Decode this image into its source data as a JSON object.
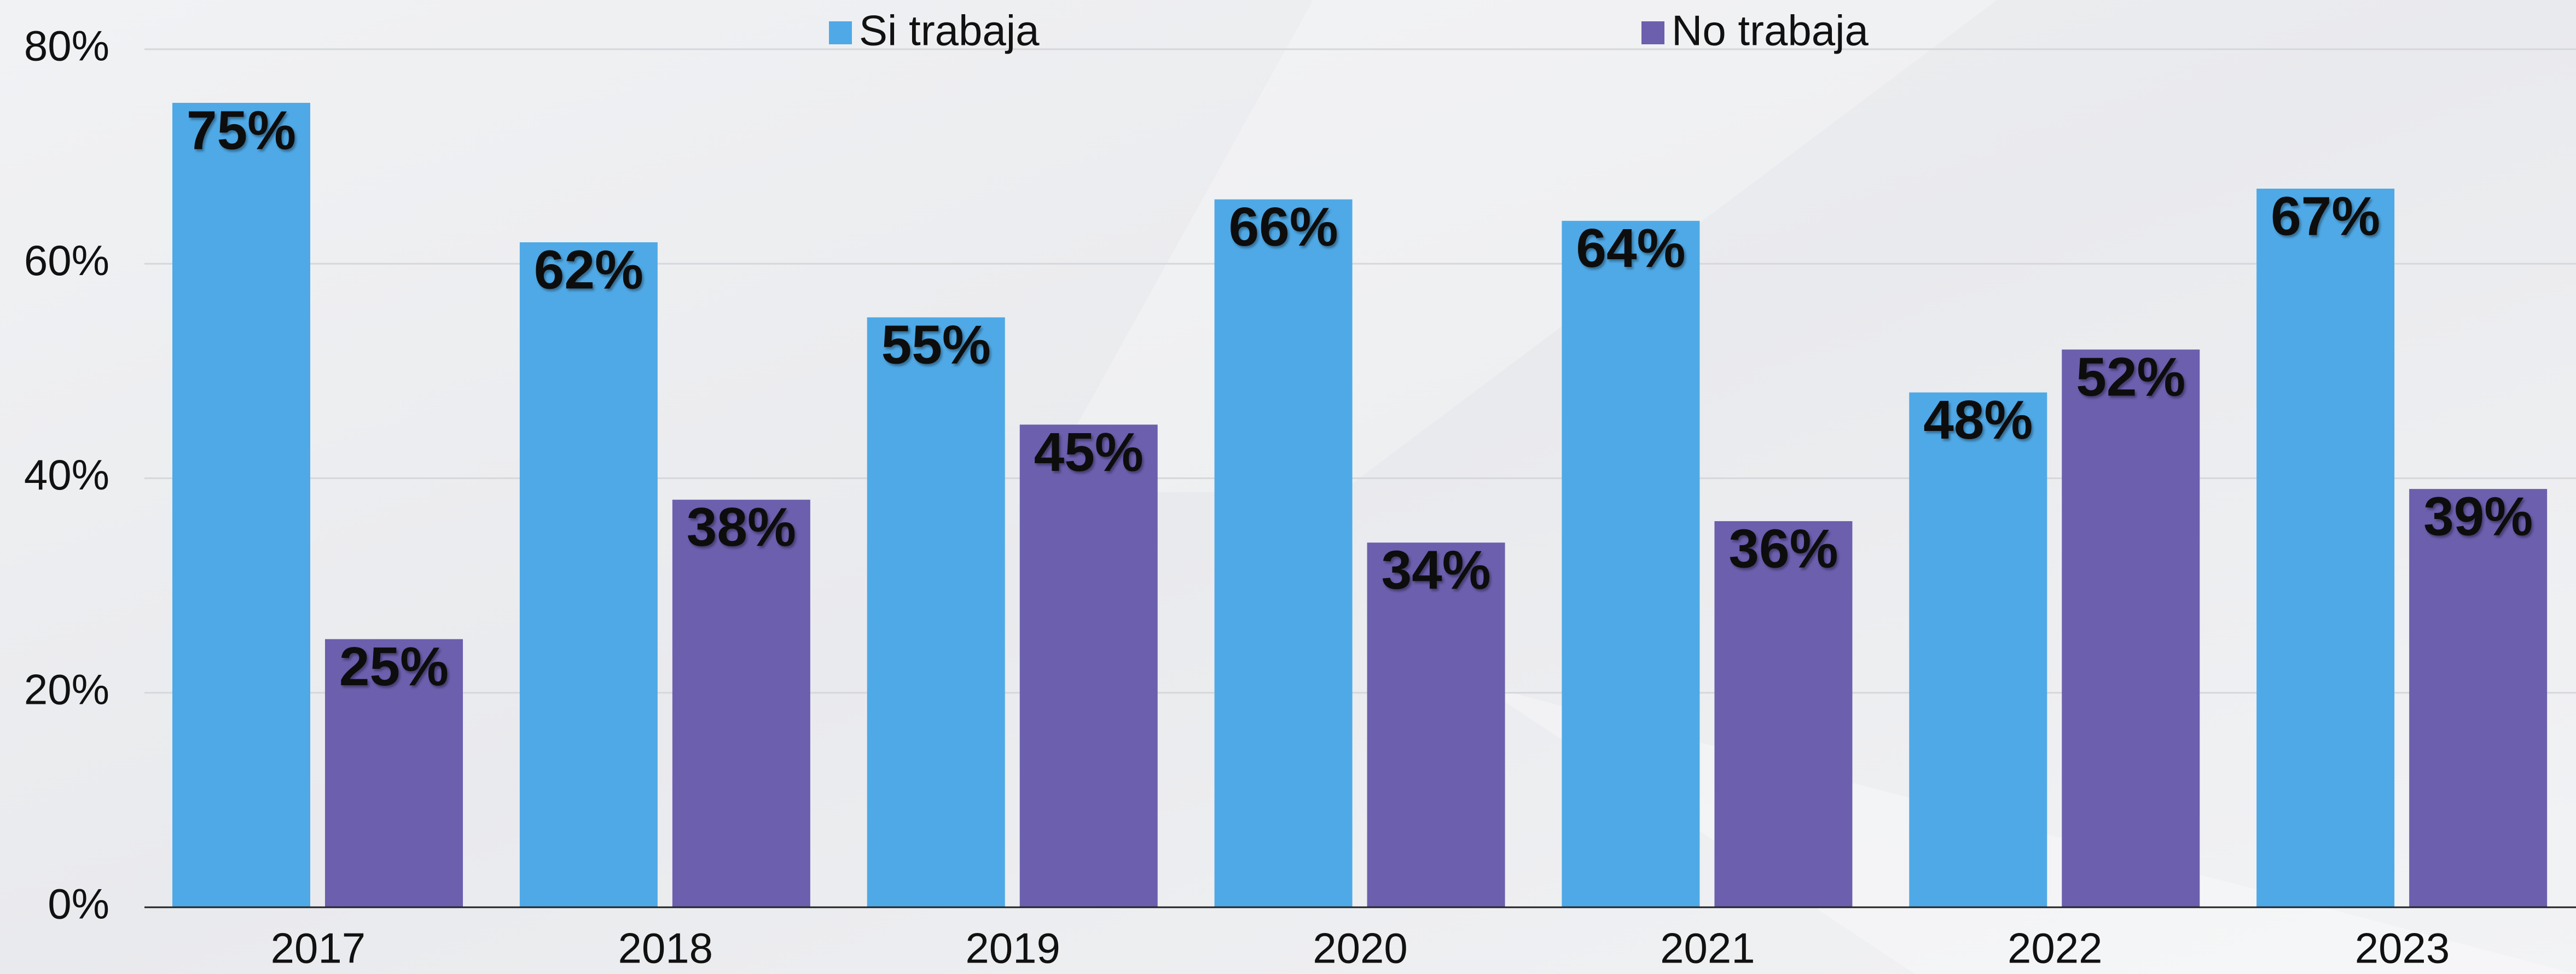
{
  "chart_data": {
    "type": "bar",
    "categories": [
      "2017",
      "2018",
      "2019",
      "2020",
      "2021",
      "2022",
      "2023"
    ],
    "series": [
      {
        "name": "Si trabaja",
        "color": "#4fa9e6",
        "values": [
          75,
          62,
          55,
          66,
          64,
          48,
          67
        ],
        "value_labels": [
          "75%",
          "62%",
          "55%",
          "66%",
          "64%",
          "48%",
          "67%"
        ]
      },
      {
        "name": "No trabaja",
        "color": "#6b5fae",
        "values": [
          25,
          38,
          45,
          34,
          36,
          52,
          39
        ],
        "value_labels": [
          "25%",
          "38%",
          "45%",
          "34%",
          "36%",
          "52%",
          "39%"
        ]
      }
    ],
    "ylim": [
      0,
      80
    ],
    "yticks": [
      {
        "value": 0,
        "label": "0%"
      },
      {
        "value": 20,
        "label": "20%"
      },
      {
        "value": 40,
        "label": "40%"
      },
      {
        "value": 60,
        "label": "60%"
      },
      {
        "value": 80,
        "label": "80%"
      }
    ],
    "grid": true,
    "legend": "top"
  }
}
